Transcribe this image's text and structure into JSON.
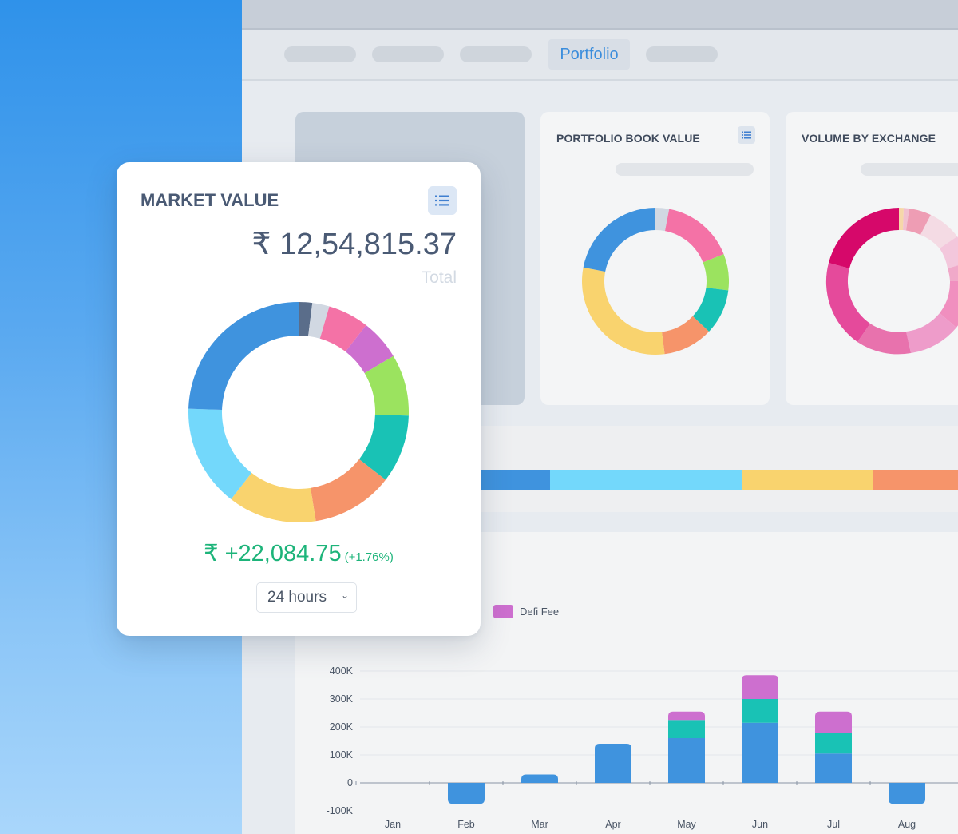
{
  "nav": {
    "active_tab": "Portfolio"
  },
  "cards": {
    "portfolio_book_value": {
      "title": "PORTFOLIO BOOK VALUE",
      "colors": [
        "#d1d8e2",
        "#f472a6",
        "#9be35f",
        "#19c2b5",
        "#f6946a",
        "#f9d36e",
        "#3f93de"
      ],
      "shares": [
        3,
        16,
        8,
        10,
        11,
        30,
        22
      ]
    },
    "volume_by_exchange": {
      "title": "VOLUME BY EXCHANGE"
    }
  },
  "market_value": {
    "title": "MARKET VALUE",
    "currency_symbol": "₹",
    "amount": "12,54,815.37",
    "total_label": "Total",
    "change_value": "₹ +22,084.75",
    "change_percent": "(+1.76%)",
    "period_select": "24 hours",
    "donut_colors": [
      "#5a6d8a",
      "#d1d8e2",
      "#f472a6",
      "#cd6fcf",
      "#9be35f",
      "#19c2b5",
      "#f6946a",
      "#f9d36e",
      "#73d8fb",
      "#3f93de"
    ],
    "donut_shares": [
      2,
      2.5,
      6,
      6,
      9,
      10,
      12,
      13,
      15,
      24.5
    ]
  },
  "allocation_bar": {
    "colors": [
      "#3f93de",
      "#73d8fb",
      "#f9d36e",
      "#f6946a"
    ]
  },
  "chart_data": {
    "type": "bar",
    "stacked": true,
    "categories": [
      "Jan",
      "Feb",
      "Mar",
      "Apr",
      "May",
      "Jun",
      "Jul",
      "Aug"
    ],
    "series": [
      {
        "name": "",
        "color": "#3f93de",
        "values": [
          0,
          -75000,
          30000,
          140000,
          160000,
          215000,
          105000,
          -75000
        ]
      },
      {
        "name": "",
        "color": "#19c2b5",
        "values": [
          0,
          0,
          0,
          0,
          65000,
          85000,
          75000,
          0
        ]
      },
      {
        "name": "Defi Fee",
        "color": "#cd6fcf",
        "values": [
          0,
          0,
          0,
          0,
          30000,
          85000,
          75000,
          0
        ]
      }
    ],
    "yticks": [
      "400K",
      "300K",
      "200K",
      "100K",
      "0",
      "-100K"
    ],
    "ylim": [
      -100000,
      400000
    ],
    "grid": true,
    "legend": "top-left"
  }
}
